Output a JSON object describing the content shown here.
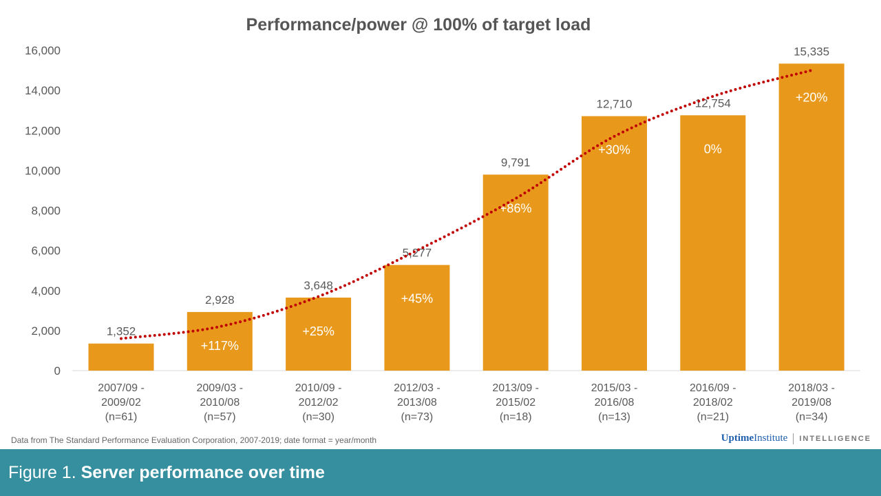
{
  "chart_data": {
    "type": "bar",
    "title": "Performance/power @ 100% of target load",
    "categories": [
      [
        "2007/09 -",
        "2009/02",
        "(n=61)"
      ],
      [
        "2009/03 -",
        "2010/08",
        "(n=57)"
      ],
      [
        "2010/09 -",
        "2012/02",
        "(n=30)"
      ],
      [
        "2012/03 -",
        "2013/08",
        "(n=73)"
      ],
      [
        "2013/09 -",
        "2015/02",
        "(n=18)"
      ],
      [
        "2015/03 -",
        "2016/08",
        "(n=13)"
      ],
      [
        "2016/09 -",
        "2018/02",
        "(n=21)"
      ],
      [
        "2018/03 -",
        "2019/08",
        "(n=34)"
      ]
    ],
    "values": [
      1352,
      2928,
      3648,
      5277,
      9791,
      12710,
      12754,
      15335
    ],
    "value_labels": [
      "1,352",
      "2,928",
      "3,648",
      "5,277",
      "9,791",
      "12,710",
      "12,754",
      "15,335"
    ],
    "change_labels": [
      "",
      "+117%",
      "+25%",
      "+45%",
      "+86%",
      "+30%",
      "0%",
      "+20%"
    ],
    "trendline": {
      "style": "dotted",
      "values": [
        1600,
        2200,
        3700,
        6000,
        8600,
        11700,
        13700,
        15000
      ]
    },
    "yticks": [
      0,
      2000,
      4000,
      6000,
      8000,
      10000,
      12000,
      14000,
      16000
    ],
    "ytick_labels": [
      "0",
      "2,000",
      "4,000",
      "6,000",
      "8,000",
      "10,000",
      "12,000",
      "14,000",
      "16,000"
    ],
    "ylim": [
      0,
      16000
    ],
    "xlabel": "",
    "ylabel": "",
    "grid": false,
    "colors": {
      "bar": "#e8991c",
      "trend": "#c00000",
      "text": "#595959"
    }
  },
  "source_note": "Data from The Standard Performance  Evaluation  Corporation,  2007-2019;  date format  = year/month",
  "logo": {
    "uptime": "Uptime",
    "institute": "Institute",
    "intelligence": "INTELLIGENCE"
  },
  "banner": {
    "figure": "Figure 1. ",
    "caption": "Server performance over time"
  }
}
